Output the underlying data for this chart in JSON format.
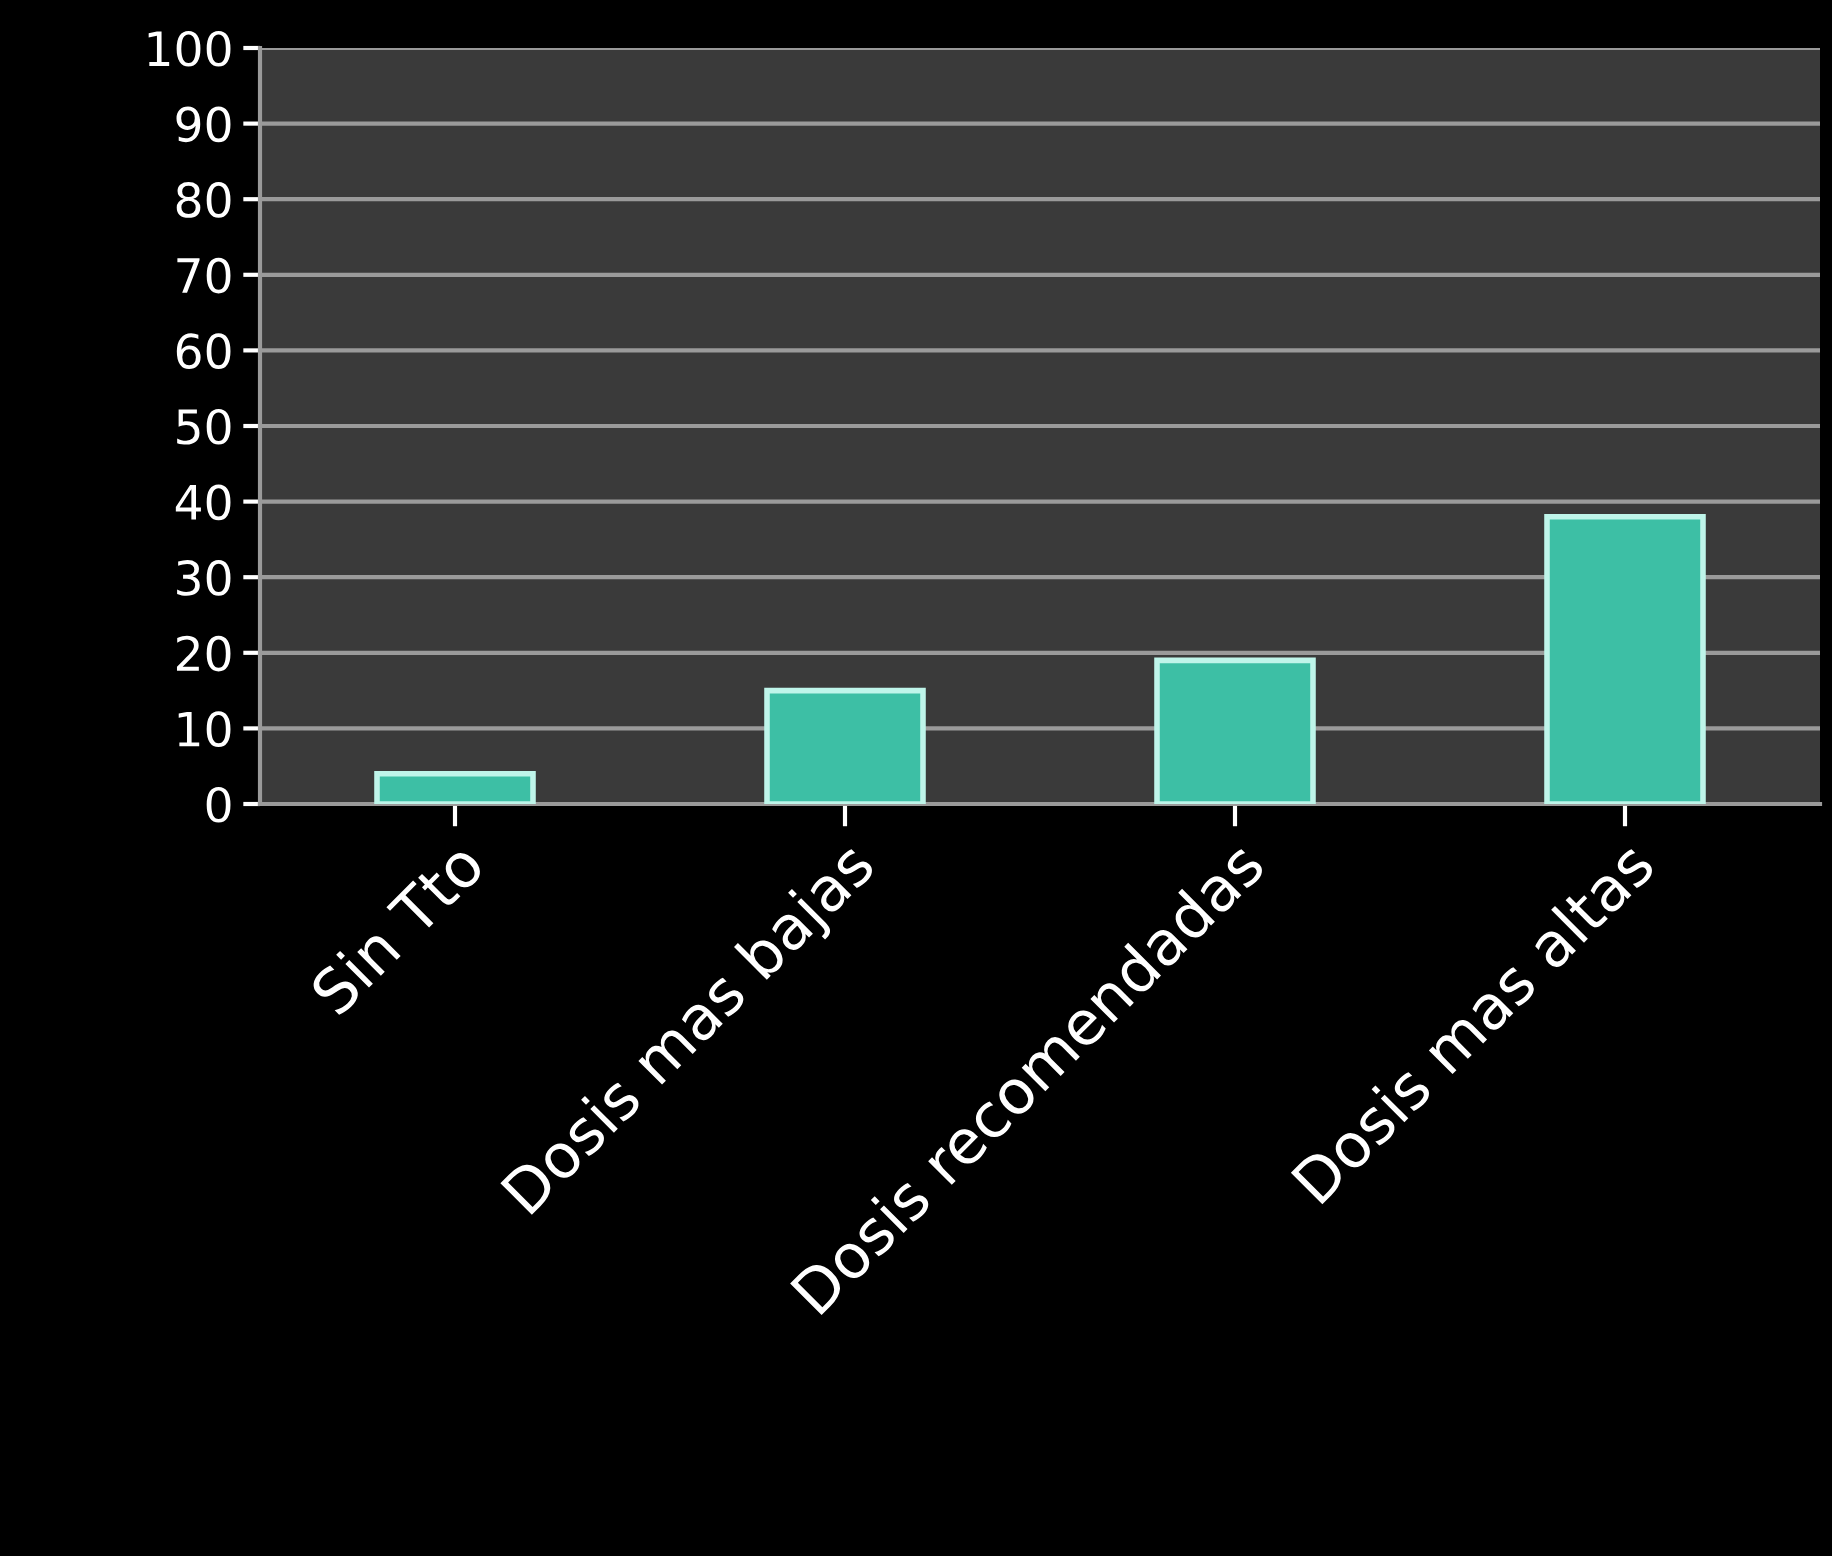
{
  "chart_data": {
    "type": "bar",
    "categories": [
      "Sin Tto",
      "Dosis mas bajas",
      "Dosis recomendadas",
      "Dosis mas altas"
    ],
    "values": [
      4,
      15,
      19,
      38
    ],
    "color": "#3dbfa5",
    "ylim": [
      0,
      100
    ],
    "yticks": [
      0,
      10,
      20,
      30,
      40,
      50,
      60,
      70,
      80,
      90,
      100
    ],
    "grid": "y",
    "legend": false
  }
}
